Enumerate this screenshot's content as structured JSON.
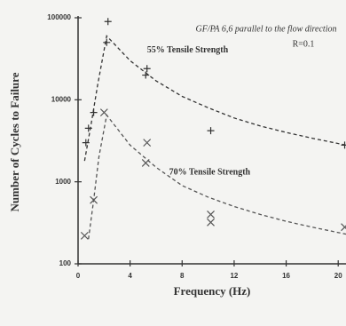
{
  "chart_data": {
    "type": "scatter",
    "title": "GF/PA 6,6 parallel to the flow direction",
    "subtitle": "R=0.1",
    "x_label": "Frequency (Hz)",
    "y_label": "Number of Cycles to Failure",
    "log_y": true,
    "xlim": [
      0,
      20.6
    ],
    "xticks": [
      0,
      4,
      8,
      12,
      16,
      20
    ],
    "ylim": [
      100,
      100000
    ],
    "yticks": [
      100,
      1000,
      10000,
      100000
    ],
    "series": [
      {
        "name": "55% Tensile Strength",
        "color": "#333333",
        "marker": "plus",
        "x": [
          0.6,
          0.8,
          1.2,
          2.2,
          2.3,
          5.2,
          5.3,
          10.2,
          20.5
        ],
        "values": [
          3000,
          4500,
          7000,
          50000,
          90000,
          20000,
          24000,
          4200,
          2800
        ],
        "fit": {
          "x": [
            0.5,
            1,
            1.5,
            2.2,
            4,
            6,
            8,
            10,
            12,
            14,
            16,
            18,
            20.6
          ],
          "values": [
            1800,
            5000,
            15000,
            60000,
            30000,
            17000,
            11000,
            8000,
            6000,
            4800,
            4000,
            3400,
            2800
          ]
        },
        "label_at": [
          5.3,
          40000
        ]
      },
      {
        "name": "70% Tensile Strength",
        "color": "#555555",
        "marker": "cross",
        "x": [
          0.5,
          1.2,
          2.0,
          5.2,
          5.3,
          10.2,
          10.2,
          20.5
        ],
        "values": [
          220,
          600,
          7000,
          1700,
          3000,
          400,
          320,
          280
        ],
        "fit": {
          "x": [
            0.8,
            1.2,
            1.6,
            2.2,
            4,
            6,
            8,
            10,
            12,
            14,
            16,
            18,
            20.6
          ],
          "values": [
            200,
            600,
            2000,
            6500,
            2800,
            1500,
            900,
            650,
            500,
            400,
            330,
            280,
            230
          ]
        },
        "label_at": [
          7,
          1300
        ]
      }
    ]
  }
}
